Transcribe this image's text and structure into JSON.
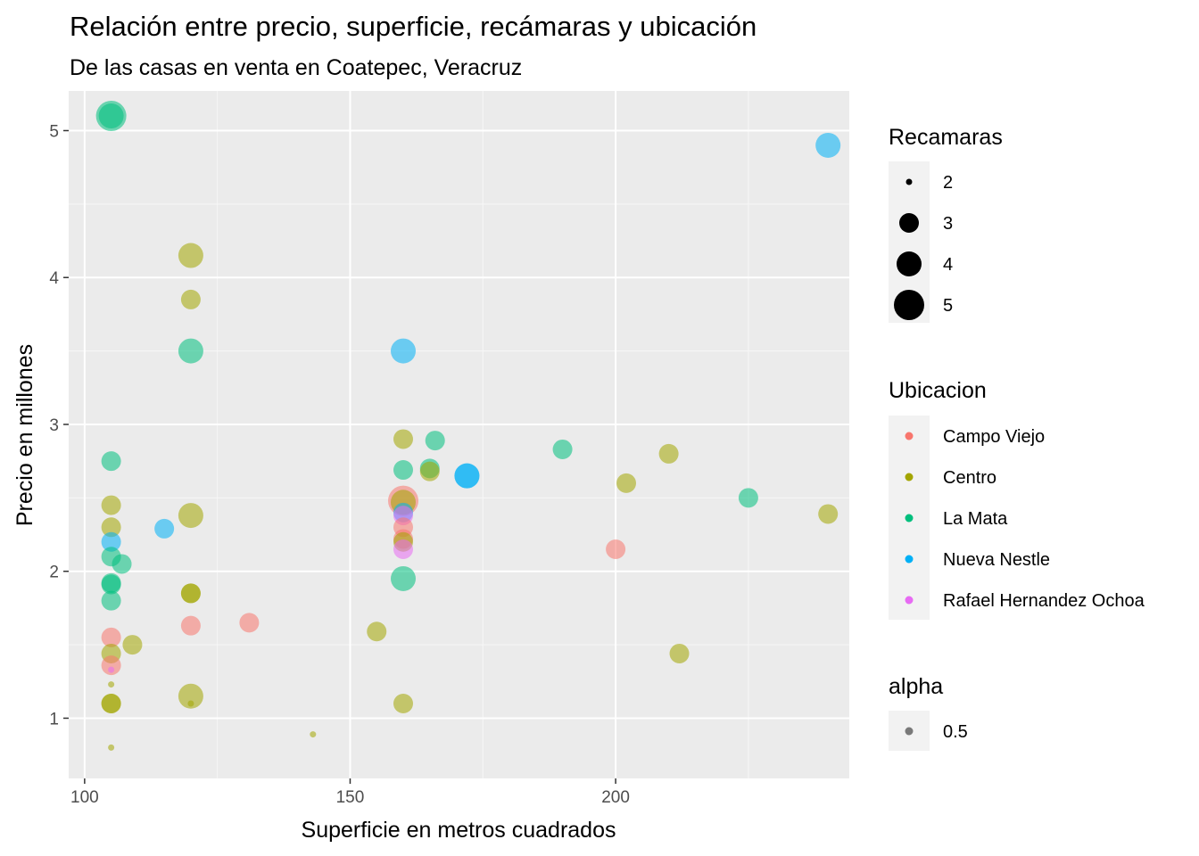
{
  "chart_data": {
    "type": "scatter",
    "title": "Relación entre precio, superficie, recámaras y ubicación",
    "subtitle": "De las casas en venta en Coatepec, Veracruz",
    "xlabel": "Superficie en metros cuadrados",
    "ylabel": "Precio en millones",
    "xlim": [
      97,
      244
    ],
    "ylim": [
      0.59,
      5.27
    ],
    "x_ticks": [
      100,
      150,
      200
    ],
    "y_ticks": [
      1,
      2,
      3,
      4,
      5
    ],
    "grid": true,
    "legend_position": "right",
    "legends": {
      "size": {
        "title": "Recamaras",
        "entries": [
          "2",
          "3",
          "4",
          "5"
        ]
      },
      "color": {
        "title": "Ubicacion",
        "entries": [
          "Campo Viejo",
          "Centro",
          "La Mata",
          "Nueva Nestle",
          "Rafael Hernandez Ochoa"
        ]
      },
      "alpha": {
        "title": "alpha",
        "entries": [
          "0.5"
        ]
      }
    },
    "colors": {
      "Campo Viejo": "#F8766D",
      "Centro": "#A3A500",
      "La Mata": "#00BF7D",
      "Nueva Nestle": "#00B0F6",
      "Rafael Hernandez Ochoa": "#E76BF3"
    },
    "points": [
      {
        "x": 105,
        "y": 5.1,
        "ubicacion": "La Mata",
        "recamaras": 5
      },
      {
        "x": 105,
        "y": 5.1,
        "ubicacion": "La Mata",
        "recamaras": 4
      },
      {
        "x": 240,
        "y": 4.9,
        "ubicacion": "Nueva Nestle",
        "recamaras": 4
      },
      {
        "x": 120,
        "y": 4.15,
        "ubicacion": "Centro",
        "recamaras": 4
      },
      {
        "x": 120,
        "y": 3.85,
        "ubicacion": "Centro",
        "recamaras": 3
      },
      {
        "x": 120,
        "y": 3.5,
        "ubicacion": "La Mata",
        "recamaras": 4
      },
      {
        "x": 160,
        "y": 3.5,
        "ubicacion": "Nueva Nestle",
        "recamaras": 4
      },
      {
        "x": 160,
        "y": 2.9,
        "ubicacion": "Centro",
        "recamaras": 3
      },
      {
        "x": 166,
        "y": 2.89,
        "ubicacion": "La Mata",
        "recamaras": 3
      },
      {
        "x": 190,
        "y": 2.83,
        "ubicacion": "La Mata",
        "recamaras": 3
      },
      {
        "x": 210,
        "y": 2.8,
        "ubicacion": "Centro",
        "recamaras": 3
      },
      {
        "x": 105,
        "y": 2.75,
        "ubicacion": "La Mata",
        "recamaras": 3
      },
      {
        "x": 160,
        "y": 2.69,
        "ubicacion": "La Mata",
        "recamaras": 3
      },
      {
        "x": 165,
        "y": 2.7,
        "ubicacion": "La Mata",
        "recamaras": 3
      },
      {
        "x": 165,
        "y": 2.68,
        "ubicacion": "Centro",
        "recamaras": 3
      },
      {
        "x": 172,
        "y": 2.65,
        "ubicacion": "Nueva Nestle",
        "recamaras": 4
      },
      {
        "x": 172,
        "y": 2.65,
        "ubicacion": "Nueva Nestle",
        "recamaras": 4
      },
      {
        "x": 202,
        "y": 2.6,
        "ubicacion": "Centro",
        "recamaras": 3
      },
      {
        "x": 225,
        "y": 2.5,
        "ubicacion": "La Mata",
        "recamaras": 3
      },
      {
        "x": 160,
        "y": 2.48,
        "ubicacion": "Campo Viejo",
        "recamaras": 5
      },
      {
        "x": 160,
        "y": 2.47,
        "ubicacion": "Centro",
        "recamaras": 4
      },
      {
        "x": 160,
        "y": 2.4,
        "ubicacion": "Nueva Nestle",
        "recamaras": 3
      },
      {
        "x": 160,
        "y": 2.38,
        "ubicacion": "Rafael Hernandez Ochoa",
        "recamaras": 3
      },
      {
        "x": 105,
        "y": 2.45,
        "ubicacion": "Centro",
        "recamaras": 3
      },
      {
        "x": 120,
        "y": 2.38,
        "ubicacion": "Centro",
        "recamaras": 4
      },
      {
        "x": 240,
        "y": 2.39,
        "ubicacion": "Centro",
        "recamaras": 3
      },
      {
        "x": 105,
        "y": 2.3,
        "ubicacion": "Centro",
        "recamaras": 3
      },
      {
        "x": 115,
        "y": 2.29,
        "ubicacion": "Nueva Nestle",
        "recamaras": 3
      },
      {
        "x": 160,
        "y": 2.3,
        "ubicacion": "Campo Viejo",
        "recamaras": 3
      },
      {
        "x": 160,
        "y": 2.22,
        "ubicacion": "Campo Viejo",
        "recamaras": 3
      },
      {
        "x": 160,
        "y": 2.2,
        "ubicacion": "Centro",
        "recamaras": 3
      },
      {
        "x": 160,
        "y": 2.15,
        "ubicacion": "Rafael Hernandez Ochoa",
        "recamaras": 3
      },
      {
        "x": 105,
        "y": 2.2,
        "ubicacion": "Nueva Nestle",
        "recamaras": 3
      },
      {
        "x": 200,
        "y": 2.15,
        "ubicacion": "Campo Viejo",
        "recamaras": 3
      },
      {
        "x": 105,
        "y": 2.1,
        "ubicacion": "La Mata",
        "recamaras": 3
      },
      {
        "x": 107,
        "y": 2.05,
        "ubicacion": "La Mata",
        "recamaras": 3
      },
      {
        "x": 160,
        "y": 1.95,
        "ubicacion": "La Mata",
        "recamaras": 4
      },
      {
        "x": 105,
        "y": 1.92,
        "ubicacion": "La Mata",
        "recamaras": 3
      },
      {
        "x": 105,
        "y": 1.91,
        "ubicacion": "La Mata",
        "recamaras": 3
      },
      {
        "x": 120,
        "y": 1.85,
        "ubicacion": "Centro",
        "recamaras": 3
      },
      {
        "x": 120,
        "y": 1.85,
        "ubicacion": "Centro",
        "recamaras": 3
      },
      {
        "x": 105,
        "y": 1.8,
        "ubicacion": "La Mata",
        "recamaras": 3
      },
      {
        "x": 131,
        "y": 1.65,
        "ubicacion": "Campo Viejo",
        "recamaras": 3
      },
      {
        "x": 120,
        "y": 1.63,
        "ubicacion": "Campo Viejo",
        "recamaras": 3
      },
      {
        "x": 155,
        "y": 1.59,
        "ubicacion": "Centro",
        "recamaras": 3
      },
      {
        "x": 105,
        "y": 1.55,
        "ubicacion": "Campo Viejo",
        "recamaras": 3
      },
      {
        "x": 109,
        "y": 1.5,
        "ubicacion": "Centro",
        "recamaras": 3
      },
      {
        "x": 105,
        "y": 1.44,
        "ubicacion": "Centro",
        "recamaras": 3
      },
      {
        "x": 212,
        "y": 1.44,
        "ubicacion": "Centro",
        "recamaras": 3
      },
      {
        "x": 105,
        "y": 1.36,
        "ubicacion": "Campo Viejo",
        "recamaras": 3
      },
      {
        "x": 105,
        "y": 1.33,
        "ubicacion": "Rafael Hernandez Ochoa",
        "recamaras": 2
      },
      {
        "x": 105,
        "y": 1.23,
        "ubicacion": "Centro",
        "recamaras": 2
      },
      {
        "x": 120,
        "y": 1.15,
        "ubicacion": "Centro",
        "recamaras": 4
      },
      {
        "x": 105,
        "y": 1.1,
        "ubicacion": "Centro",
        "recamaras": 3
      },
      {
        "x": 105,
        "y": 1.1,
        "ubicacion": "Centro",
        "recamaras": 3
      },
      {
        "x": 120,
        "y": 1.1,
        "ubicacion": "Centro",
        "recamaras": 2
      },
      {
        "x": 160,
        "y": 1.1,
        "ubicacion": "Centro",
        "recamaras": 3
      },
      {
        "x": 143,
        "y": 0.89,
        "ubicacion": "Centro",
        "recamaras": 2
      },
      {
        "x": 105,
        "y": 0.8,
        "ubicacion": "Centro",
        "recamaras": 2
      }
    ]
  }
}
